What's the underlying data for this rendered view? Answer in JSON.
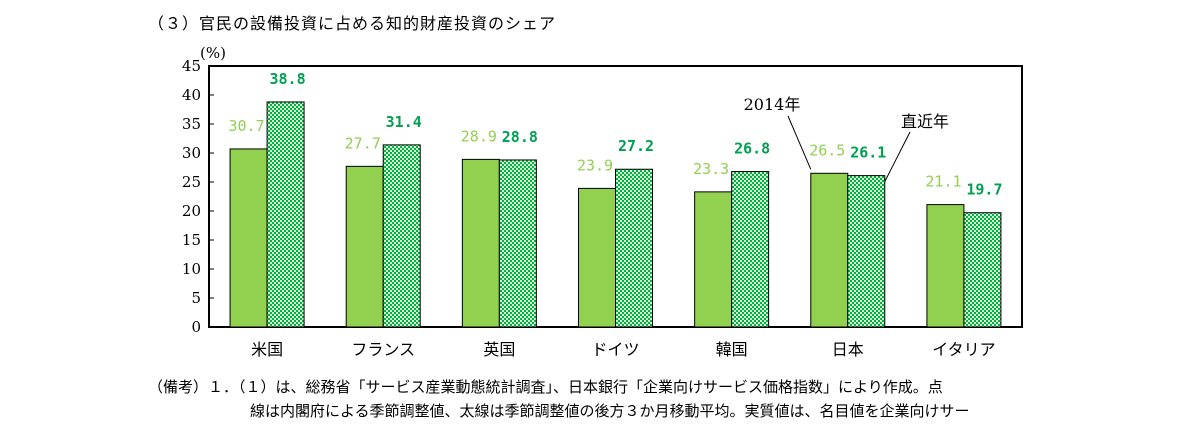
{
  "section_title": "（３）官民の設備投資に占める知的財産投資のシェア",
  "chart_data": {
    "type": "bar",
    "unit_label": "(%)",
    "categories": [
      "米国",
      "フランス",
      "英国",
      "ドイツ",
      "韓国",
      "日本",
      "イタリア"
    ],
    "series": [
      {
        "name": "2014年",
        "values": [
          30.7,
          27.7,
          28.9,
          23.9,
          23.3,
          26.5,
          21.1
        ],
        "color": "#92d050",
        "label_color": "#92d050"
      },
      {
        "name": "直近年",
        "values": [
          38.8,
          31.4,
          28.8,
          27.2,
          26.8,
          26.1,
          19.7
        ],
        "color": "#00b050",
        "label_color": "#00a050"
      }
    ],
    "value_labels": [
      [
        "30.7",
        "27.7",
        "28.9",
        "23.9",
        "23.3",
        "26.5",
        "21.1"
      ],
      [
        "38.8",
        "31.4",
        "28.8",
        "27.2",
        "26.8",
        "26.1",
        "19.7"
      ]
    ],
    "ylim": [
      0,
      45
    ],
    "y_ticks": [
      "0",
      "5",
      "10",
      "15",
      "20",
      "25",
      "30",
      "35",
      "40",
      "45"
    ],
    "grid": false,
    "annotations": [
      "2014年",
      "直近年"
    ]
  },
  "notes": {
    "line1": "（備考）１．（１）は、総務省「サービス産業動態統計調査」、日本銀行「企業向けサービス価格指数」により作成。点",
    "line2": "線は内閣府による季節調整値、太線は季節調整値の後方３か月移動平均。実質値は、名目値を企業向けサー"
  }
}
